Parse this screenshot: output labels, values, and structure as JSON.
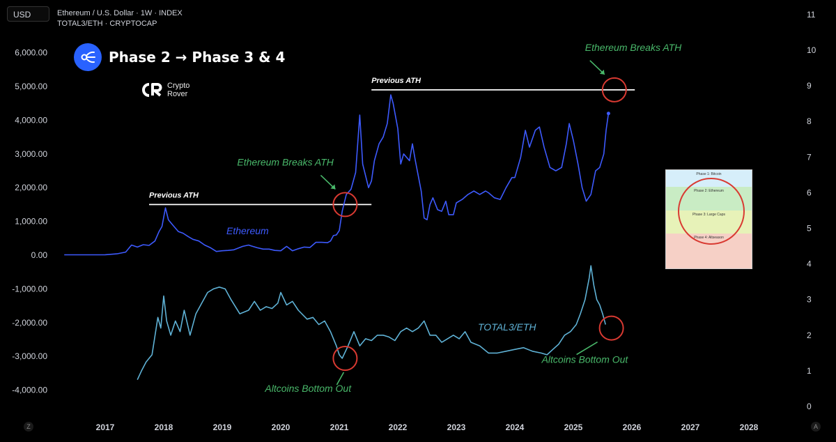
{
  "header": {
    "currency_button": "USD",
    "series1_title": "Ethereum / U.S. Dollar · 1W · INDEX",
    "series2_title": "TOTAL3/ETH · CRYPTOCAP",
    "left_corner": "Z",
    "right_corner": "A"
  },
  "banner": {
    "text": "Phase 2 → Phase 3 & 4",
    "icon": "network-hub-icon"
  },
  "logo": {
    "mark": "CR",
    "line1": "Crypto",
    "line2": "Rover"
  },
  "phase_chart": {
    "rows": [
      "Phase 1: Bitcoin",
      "Phase 2: Ethereum",
      "Phase 3: Large Caps",
      "Phase 4: Altseason"
    ],
    "colors": [
      "#cfe9f7",
      "#c9ecc4",
      "#e7f2b8",
      "#f6d0c6"
    ]
  },
  "chart_data": {
    "type": "line",
    "x_axis": {
      "ticks": [
        "2017",
        "2018",
        "2019",
        "2020",
        "2021",
        "2022",
        "2023",
        "2024",
        "2025",
        "2026",
        "2027",
        "2028"
      ],
      "range": [
        2016.3,
        2028.6
      ]
    },
    "left_axis": {
      "ticks": [
        "6,000.00",
        "5,000.00",
        "4,000.00",
        "3,000.00",
        "2,000.00",
        "1,000.00",
        "0.00",
        "-1,000.00",
        "-2,000.00",
        "-3,000.00",
        "-4,000.00"
      ],
      "range": [
        -4000,
        6000
      ]
    },
    "right_axis": {
      "ticks": [
        "11",
        "10",
        "9",
        "8",
        "7",
        "6",
        "5",
        "4",
        "3",
        "2",
        "1",
        "0"
      ],
      "range": [
        0,
        11
      ]
    },
    "series": [
      {
        "name": "Ethereum",
        "color": "#3d5afe",
        "axis": "left",
        "points": [
          [
            2016.3,
            10
          ],
          [
            2016.8,
            10
          ],
          [
            2017.0,
            12
          ],
          [
            2017.2,
            40
          ],
          [
            2017.35,
            90
          ],
          [
            2017.45,
            300
          ],
          [
            2017.55,
            240
          ],
          [
            2017.65,
            310
          ],
          [
            2017.75,
            290
          ],
          [
            2017.85,
            420
          ],
          [
            2017.92,
            700
          ],
          [
            2017.97,
            850
          ],
          [
            2018.03,
            1400
          ],
          [
            2018.08,
            1050
          ],
          [
            2018.15,
            900
          ],
          [
            2018.25,
            700
          ],
          [
            2018.33,
            650
          ],
          [
            2018.42,
            550
          ],
          [
            2018.5,
            470
          ],
          [
            2018.6,
            420
          ],
          [
            2018.7,
            300
          ],
          [
            2018.8,
            220
          ],
          [
            2018.9,
            110
          ],
          [
            2019.0,
            130
          ],
          [
            2019.1,
            140
          ],
          [
            2019.2,
            160
          ],
          [
            2019.35,
            260
          ],
          [
            2019.45,
            300
          ],
          [
            2019.5,
            270
          ],
          [
            2019.6,
            220
          ],
          [
            2019.7,
            180
          ],
          [
            2019.8,
            180
          ],
          [
            2019.9,
            140
          ],
          [
            2020.0,
            130
          ],
          [
            2020.1,
            260
          ],
          [
            2020.2,
            130
          ],
          [
            2020.3,
            190
          ],
          [
            2020.4,
            240
          ],
          [
            2020.5,
            230
          ],
          [
            2020.6,
            380
          ],
          [
            2020.7,
            380
          ],
          [
            2020.8,
            370
          ],
          [
            2020.85,
            420
          ],
          [
            2020.9,
            580
          ],
          [
            2020.95,
            600
          ],
          [
            2021.0,
            730
          ],
          [
            2021.05,
            1300
          ],
          [
            2021.12,
            1800
          ],
          [
            2021.2,
            1950
          ],
          [
            2021.28,
            2450
          ],
          [
            2021.35,
            4150
          ],
          [
            2021.4,
            2700
          ],
          [
            2021.5,
            2000
          ],
          [
            2021.55,
            2200
          ],
          [
            2021.6,
            2800
          ],
          [
            2021.68,
            3300
          ],
          [
            2021.75,
            3500
          ],
          [
            2021.82,
            3900
          ],
          [
            2021.88,
            4750
          ],
          [
            2021.92,
            4500
          ],
          [
            2022.0,
            3750
          ],
          [
            2022.05,
            2700
          ],
          [
            2022.1,
            3000
          ],
          [
            2022.2,
            2800
          ],
          [
            2022.25,
            3300
          ],
          [
            2022.3,
            2800
          ],
          [
            2022.4,
            1900
          ],
          [
            2022.45,
            1100
          ],
          [
            2022.5,
            1050
          ],
          [
            2022.55,
            1500
          ],
          [
            2022.6,
            1700
          ],
          [
            2022.68,
            1350
          ],
          [
            2022.75,
            1300
          ],
          [
            2022.82,
            1600
          ],
          [
            2022.87,
            1200
          ],
          [
            2022.95,
            1200
          ],
          [
            2023.0,
            1550
          ],
          [
            2023.1,
            1650
          ],
          [
            2023.2,
            1800
          ],
          [
            2023.3,
            1900
          ],
          [
            2023.4,
            1800
          ],
          [
            2023.5,
            1900
          ],
          [
            2023.55,
            1850
          ],
          [
            2023.65,
            1700
          ],
          [
            2023.75,
            1650
          ],
          [
            2023.85,
            2000
          ],
          [
            2023.95,
            2300
          ],
          [
            2024.0,
            2300
          ],
          [
            2024.1,
            2900
          ],
          [
            2024.18,
            3700
          ],
          [
            2024.25,
            3200
          ],
          [
            2024.35,
            3700
          ],
          [
            2024.42,
            3800
          ],
          [
            2024.5,
            3200
          ],
          [
            2024.6,
            2600
          ],
          [
            2024.7,
            2500
          ],
          [
            2024.8,
            2600
          ],
          [
            2024.88,
            3300
          ],
          [
            2024.93,
            3900
          ],
          [
            2025.0,
            3400
          ],
          [
            2025.08,
            2700
          ],
          [
            2025.15,
            2000
          ],
          [
            2025.22,
            1600
          ],
          [
            2025.3,
            1800
          ],
          [
            2025.38,
            2500
          ],
          [
            2025.45,
            2600
          ],
          [
            2025.52,
            3000
          ],
          [
            2025.56,
            3700
          ],
          [
            2025.6,
            4200
          ]
        ]
      },
      {
        "name": "TOTAL3/ETH",
        "color": "#5fb2d6",
        "axis": "right",
        "points": [
          [
            2017.55,
            0.75
          ],
          [
            2017.62,
            1.0
          ],
          [
            2017.7,
            1.25
          ],
          [
            2017.8,
            1.45
          ],
          [
            2017.9,
            2.5
          ],
          [
            2017.95,
            2.2
          ],
          [
            2018.0,
            3.1
          ],
          [
            2018.05,
            2.4
          ],
          [
            2018.12,
            2.0
          ],
          [
            2018.2,
            2.4
          ],
          [
            2018.28,
            2.1
          ],
          [
            2018.35,
            2.7
          ],
          [
            2018.45,
            2.0
          ],
          [
            2018.55,
            2.6
          ],
          [
            2018.65,
            2.9
          ],
          [
            2018.75,
            3.2
          ],
          [
            2018.85,
            3.3
          ],
          [
            2018.95,
            3.35
          ],
          [
            2019.05,
            3.3
          ],
          [
            2019.15,
            3.0
          ],
          [
            2019.3,
            2.6
          ],
          [
            2019.45,
            2.7
          ],
          [
            2019.55,
            2.95
          ],
          [
            2019.65,
            2.7
          ],
          [
            2019.75,
            2.8
          ],
          [
            2019.85,
            2.75
          ],
          [
            2019.95,
            2.9
          ],
          [
            2020.0,
            3.2
          ],
          [
            2020.1,
            2.85
          ],
          [
            2020.2,
            2.95
          ],
          [
            2020.3,
            2.7
          ],
          [
            2020.45,
            2.45
          ],
          [
            2020.55,
            2.5
          ],
          [
            2020.65,
            2.3
          ],
          [
            2020.75,
            2.4
          ],
          [
            2020.85,
            2.1
          ],
          [
            2020.95,
            1.7
          ],
          [
            2021.0,
            1.45
          ],
          [
            2021.05,
            1.35
          ],
          [
            2021.15,
            1.7
          ],
          [
            2021.25,
            2.1
          ],
          [
            2021.35,
            1.7
          ],
          [
            2021.45,
            1.9
          ],
          [
            2021.55,
            1.85
          ],
          [
            2021.65,
            2.0
          ],
          [
            2021.75,
            2.0
          ],
          [
            2021.85,
            1.95
          ],
          [
            2021.95,
            1.85
          ],
          [
            2022.05,
            2.1
          ],
          [
            2022.15,
            2.2
          ],
          [
            2022.25,
            2.1
          ],
          [
            2022.35,
            2.2
          ],
          [
            2022.45,
            2.4
          ],
          [
            2022.55,
            2.0
          ],
          [
            2022.65,
            2.0
          ],
          [
            2022.75,
            1.8
          ],
          [
            2022.85,
            1.9
          ],
          [
            2022.95,
            2.0
          ],
          [
            2023.05,
            1.9
          ],
          [
            2023.15,
            2.1
          ],
          [
            2023.25,
            1.8
          ],
          [
            2023.4,
            1.7
          ],
          [
            2023.55,
            1.5
          ],
          [
            2023.7,
            1.5
          ],
          [
            2023.85,
            1.55
          ],
          [
            2024.0,
            1.6
          ],
          [
            2024.15,
            1.65
          ],
          [
            2024.3,
            1.55
          ],
          [
            2024.45,
            1.5
          ],
          [
            2024.55,
            1.45
          ],
          [
            2024.65,
            1.6
          ],
          [
            2024.75,
            1.75
          ],
          [
            2024.85,
            2.0
          ],
          [
            2024.95,
            2.1
          ],
          [
            2025.05,
            2.3
          ],
          [
            2025.12,
            2.6
          ],
          [
            2025.2,
            3.0
          ],
          [
            2025.27,
            3.6
          ],
          [
            2025.3,
            3.95
          ],
          [
            2025.35,
            3.4
          ],
          [
            2025.4,
            3.0
          ],
          [
            2025.45,
            2.85
          ],
          [
            2025.5,
            2.6
          ],
          [
            2025.55,
            2.3
          ]
        ]
      }
    ],
    "annotations": [
      {
        "text": "Ethereum",
        "color": "#3d5afe"
      },
      {
        "text": "TOTAL3/ETH",
        "color": "#5fb2d6"
      },
      {
        "text": "Previous ATH",
        "y": 1500,
        "x_start": 2017.75,
        "x_end": 2021.55
      },
      {
        "text": "Previous ATH",
        "y": 4900,
        "x_start": 2021.55,
        "x_end": 2026.05
      },
      {
        "text": "Ethereum Breaks ATH",
        "color": "#49b86a",
        "at_x": 2021.1,
        "at_y": 1500
      },
      {
        "text": "Ethereum Breaks ATH",
        "color": "#49b86a",
        "at_x": 2025.7,
        "at_y": 4900
      },
      {
        "text": "Altcoins Bottom Out",
        "color": "#49b86a",
        "at_x": 2021.1,
        "at_y_right": 1.35
      },
      {
        "text": "Altcoins Bottom Out",
        "color": "#49b86a",
        "at_x": 2025.65,
        "at_y_right": 2.2
      }
    ],
    "grid": false
  }
}
